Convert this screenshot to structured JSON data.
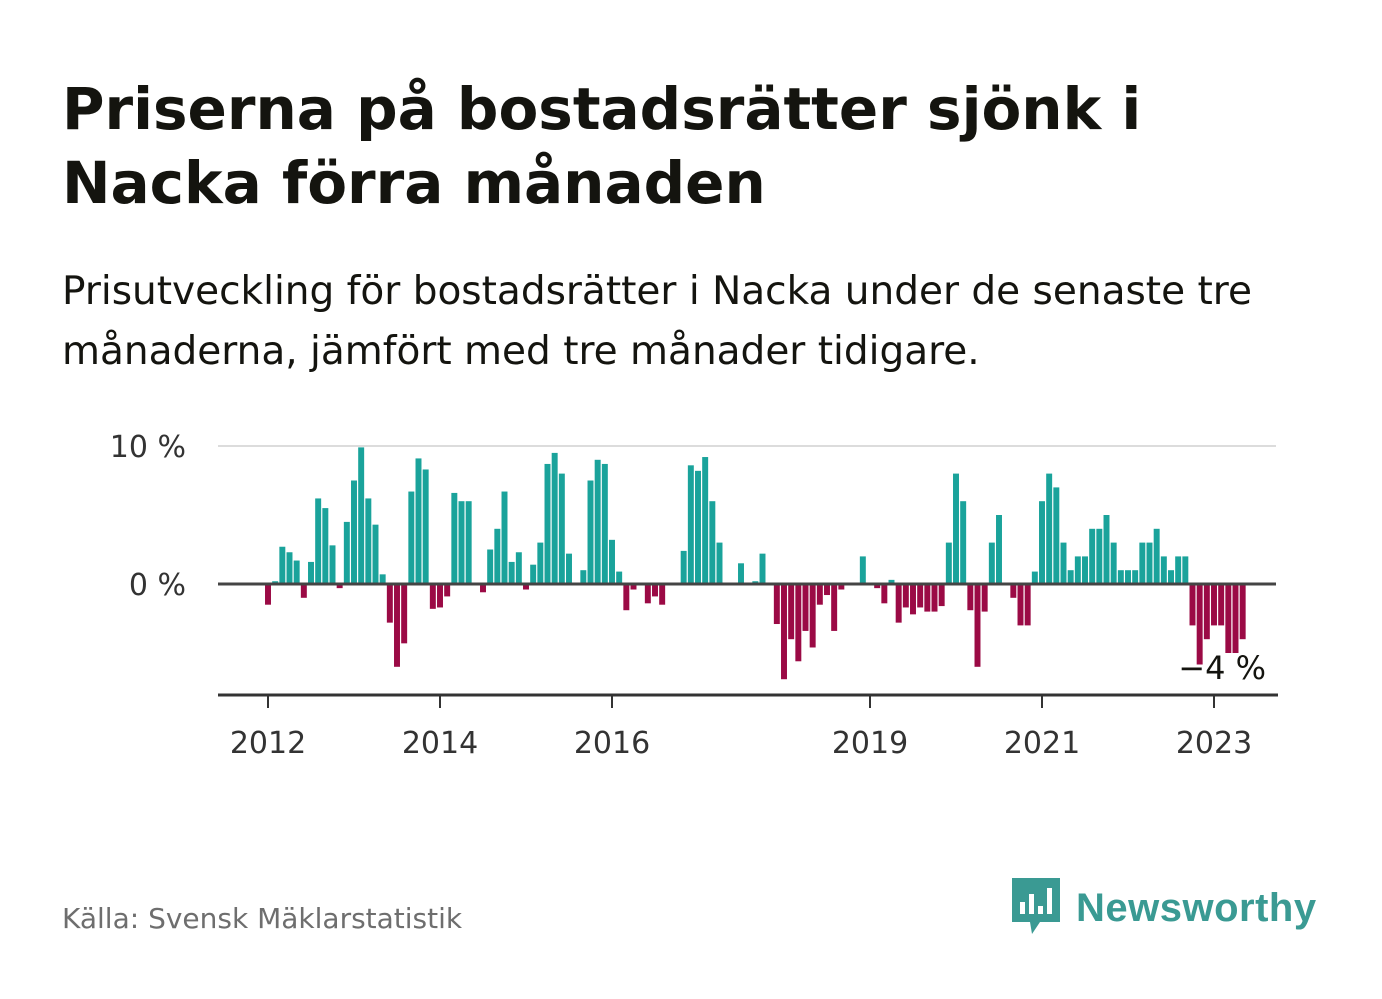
{
  "title": "Priserna på bostadsrätter sjönk i Nacka förra månaden",
  "subtitle": "Prisutveckling för bostadsrätter i Nacka under de senaste tre månaderna, jämfört med tre månader tidigare.",
  "source": "Källa: Svensk Mäklarstatistik",
  "brand": {
    "name": "Newsworthy",
    "icon": "newsworthy-chart-bubble-icon",
    "color": "#3a9a93"
  },
  "chart_data": {
    "type": "bar",
    "ylim": [
      -8,
      10
    ],
    "y_ticks": [
      {
        "value": 10,
        "label": "10 %"
      },
      {
        "value": 0,
        "label": "0 %"
      }
    ],
    "x_ticks": [
      "2012",
      "2014",
      "2016",
      "2019",
      "2021",
      "2023"
    ],
    "colors": {
      "positive": "#1aa39b",
      "negative": "#9b0a45"
    },
    "annotation": "−4 %",
    "series": [
      {
        "year": 2011,
        "values": [
          0,
          0,
          0,
          0,
          0,
          0,
          0,
          0,
          0,
          0,
          0,
          0
        ]
      },
      {
        "year": 2012,
        "values": [
          -1.5,
          0.2,
          2.7,
          2.3,
          1.7,
          -1.0,
          1.6,
          6.2,
          5.5,
          2.8,
          -0.3,
          4.5
        ]
      },
      {
        "year": 2013,
        "values": [
          7.5,
          9.9,
          6.2,
          4.3,
          0.7,
          -2.8,
          -6.0,
          -4.3,
          6.7,
          9.1,
          8.3,
          -1.8
        ]
      },
      {
        "year": 2014,
        "values": [
          -1.7,
          -0.9,
          6.6,
          6.0,
          6.0,
          0.1,
          -0.6,
          2.5,
          4.0,
          6.7,
          1.6,
          2.3
        ]
      },
      {
        "year": 2015,
        "values": [
          -0.4,
          1.4,
          3.0,
          8.7,
          9.5,
          8.0,
          2.2,
          0.1,
          1.0,
          7.5,
          9.0,
          8.7
        ]
      },
      {
        "year": 2016,
        "values": [
          3.2,
          0.9,
          -1.9,
          -0.4,
          0.1,
          -1.4,
          -0.9,
          -1.5,
          0.1,
          0.1,
          2.4,
          8.6
        ]
      },
      {
        "year": 2017,
        "values": [
          8.2,
          9.2,
          6.0,
          3.0,
          0.0,
          0.1,
          1.5,
          0.1,
          0.2,
          2.2,
          0.0,
          -2.9
        ]
      },
      {
        "year": 2018,
        "values": [
          -6.9,
          -4.0,
          -5.6,
          -3.4,
          -4.6,
          -1.5,
          -0.8,
          -3.4,
          -0.4,
          0.0,
          0.0,
          2.0
        ]
      },
      {
        "year": 2019,
        "values": [
          0.0,
          -0.3,
          -1.4,
          0.3,
          -2.8,
          -1.7,
          -2.2,
          -1.7,
          -2.0,
          -2.0,
          -1.6,
          3.0
        ]
      },
      {
        "year": 2020,
        "values": [
          8.0,
          6.0,
          -1.9,
          -6.0,
          -2.0,
          3.0,
          5.0,
          0.0,
          -1.0,
          -3.0,
          -3.0,
          0.9
        ]
      },
      {
        "year": 2021,
        "values": [
          6.0,
          8.0,
          7.0,
          3.0,
          1.0,
          2.0,
          2.0,
          4.0,
          4.0,
          5.0,
          3.0,
          1.0
        ]
      },
      {
        "year": 2022,
        "values": [
          1.0,
          1.0,
          3.0,
          3.0,
          4.0,
          2.0,
          1.0,
          2.0,
          2.0,
          -3.0,
          -6.0,
          -4.0
        ]
      },
      {
        "year": 2023,
        "values": [
          -3.0,
          -3.0,
          -5.0,
          -5.0,
          -4.0
        ]
      }
    ]
  }
}
